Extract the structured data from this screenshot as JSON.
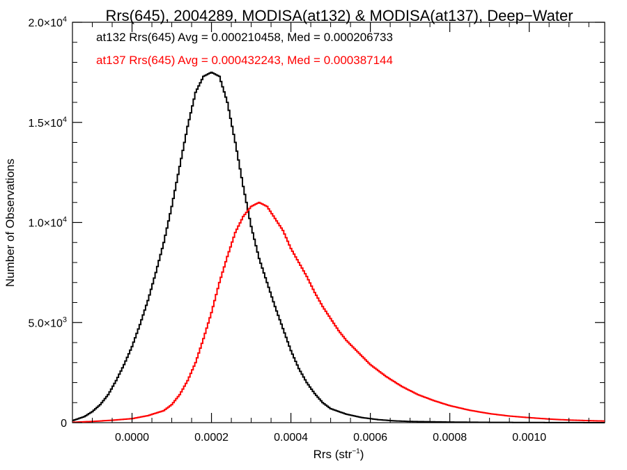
{
  "chart_data": {
    "type": "line",
    "title": "Rrs(645), 2004289, MODISA(at132) & MODISA(at137), Deep−Water",
    "xlabel": "Rrs (str",
    "xlabel_sup": "−1",
    "xlabel_tail": ")",
    "ylabel": "Number of Observations",
    "xlim": [
      -0.00015,
      0.00119
    ],
    "ylim": [
      0,
      20000
    ],
    "x_ticks": [
      {
        "value": 0.0,
        "label": "0.0000"
      },
      {
        "value": 0.0002,
        "label": "0.0002"
      },
      {
        "value": 0.0004,
        "label": "0.0004"
      },
      {
        "value": 0.0006,
        "label": "0.0006"
      },
      {
        "value": 0.0008,
        "label": "0.0008"
      },
      {
        "value": 0.001,
        "label": "0.0010"
      }
    ],
    "y_ticks": [
      {
        "value": 0,
        "label": "0",
        "mant": "",
        "exp": ""
      },
      {
        "value": 5000,
        "label": "",
        "mant": "5.0×10",
        "exp": "3"
      },
      {
        "value": 10000,
        "label": "",
        "mant": "1.0×10",
        "exp": "4"
      },
      {
        "value": 15000,
        "label": "",
        "mant": "1.5×10",
        "exp": "4"
      },
      {
        "value": 20000,
        "label": "",
        "mant": "2.0×10",
        "exp": "4"
      }
    ],
    "annotations": [
      {
        "text": "at132 Rrs(645) Avg = 0.000210458, Med = 0.000206733",
        "color": "#000000"
      },
      {
        "text": "at137 Rrs(645) Avg = 0.000432243, Med = 0.000387144",
        "color": "#ff0000"
      }
    ],
    "series": [
      {
        "color": "#000000",
        "x": [
          -0.00015,
          -0.00012,
          -0.0001,
          -8e-05,
          -6e-05,
          -4e-05,
          -2e-05,
          0.0,
          2e-05,
          4e-05,
          6e-05,
          8e-05,
          0.0001,
          0.00012,
          0.00014,
          0.00016,
          0.00018,
          0.0002,
          0.00022,
          0.00024,
          0.00026,
          0.00028,
          0.0003,
          0.00032,
          0.00034,
          0.00036,
          0.00038,
          0.0004,
          0.00042,
          0.00044,
          0.00046,
          0.00048,
          0.0005,
          0.00054,
          0.00058,
          0.00062,
          0.00066,
          0.0007,
          0.0008,
          0.0009,
          0.001,
          0.00119
        ],
        "y": [
          100,
          300,
          550,
          900,
          1400,
          2100,
          2900,
          3800,
          4900,
          6100,
          7500,
          9000,
          10800,
          12800,
          14800,
          16500,
          17300,
          17500,
          17300,
          16000,
          14000,
          11800,
          9800,
          8200,
          7000,
          5800,
          4700,
          3600,
          2700,
          2000,
          1450,
          1000,
          700,
          420,
          250,
          150,
          90,
          60,
          30,
          15,
          8,
          0
        ]
      },
      {
        "color": "#ff0000",
        "x": [
          -0.00015,
          -0.0001,
          -5e-05,
          0.0,
          4e-05,
          8e-05,
          0.0001,
          0.00012,
          0.00014,
          0.00016,
          0.00018,
          0.0002,
          0.00022,
          0.00024,
          0.00026,
          0.00028,
          0.0003,
          0.00032,
          0.00034,
          0.00036,
          0.00038,
          0.0004,
          0.00042,
          0.00044,
          0.00046,
          0.00048,
          0.0005,
          0.00052,
          0.00054,
          0.00056,
          0.00058,
          0.0006,
          0.00064,
          0.00068,
          0.00072,
          0.00076,
          0.0008,
          0.00085,
          0.0009,
          0.00095,
          0.001,
          0.00105,
          0.0011,
          0.00115,
          0.00119
        ],
        "y": [
          20,
          60,
          120,
          200,
          350,
          600,
          900,
          1400,
          2100,
          3000,
          4200,
          5500,
          7000,
          8300,
          9500,
          10300,
          10800,
          11000,
          10800,
          10200,
          9600,
          8700,
          8000,
          7300,
          6500,
          5800,
          5200,
          4600,
          4100,
          3700,
          3300,
          2900,
          2300,
          1800,
          1400,
          1100,
          850,
          620,
          450,
          330,
          250,
          180,
          130,
          100,
          80
        ]
      }
    ]
  }
}
